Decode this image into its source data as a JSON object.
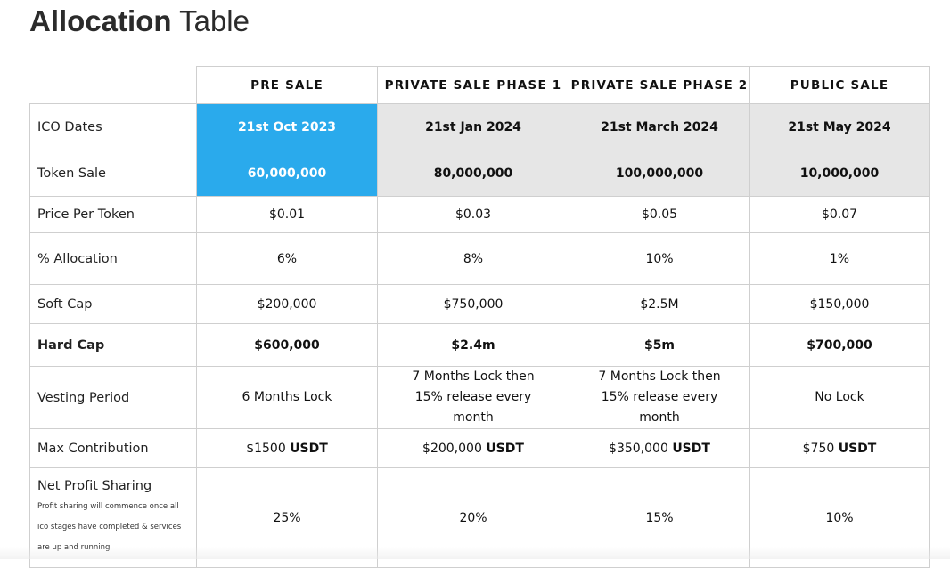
{
  "title": {
    "bold": "Allocation",
    "rest": "Table"
  },
  "phases": [
    "PRE SALE",
    "PRIVATE SALE PHASE 1",
    "PRIVATE SALE PHASE 2",
    "PUBLIC SALE"
  ],
  "rows": {
    "ico_dates": {
      "label": "ICO Dates",
      "values": [
        "21st Oct 2023",
        "21st Jan 2024",
        "21st March 2024",
        "21st May 2024"
      ]
    },
    "token_sale": {
      "label": "Token Sale",
      "values": [
        "60,000,000",
        "80,000,000",
        "100,000,000",
        "10,000,000"
      ]
    },
    "price_per_token": {
      "label": "Price Per Token",
      "values": [
        "$0.01",
        "$0.03",
        "$0.05",
        "$0.07"
      ]
    },
    "allocation": {
      "label": "% Allocation",
      "values": [
        "6%",
        "8%",
        "10%",
        "1%"
      ]
    },
    "soft_cap": {
      "label": "Soft Cap",
      "values": [
        "$200,000",
        "$750,000",
        "$2.5M",
        "$150,000"
      ]
    },
    "hard_cap": {
      "label": "Hard Cap",
      "values": [
        "$600,000",
        "$2.4m",
        "$5m",
        "$700,000"
      ]
    },
    "vesting_period": {
      "label": "Vesting Period",
      "values": [
        "6 Months Lock",
        "7 Months Lock then 15% release every month",
        "7 Months Lock then 15% release every month",
        "No Lock"
      ]
    },
    "max_contribution": {
      "label": "Max Contribution",
      "unit": "USDT",
      "values": [
        "$1500",
        "$200,000",
        "$350,000",
        "$750"
      ]
    },
    "net_profit_sharing": {
      "label": "Net Profit Sharing",
      "note": "Profit sharing will commence once all ico stages have completed & services are up and running",
      "values": [
        "25%",
        "20%",
        "15%",
        "10%"
      ]
    }
  },
  "colors": {
    "active_phase": "#2aaaec",
    "inactive_phase": "#e6e6e6",
    "border": "#cfcfcf"
  }
}
